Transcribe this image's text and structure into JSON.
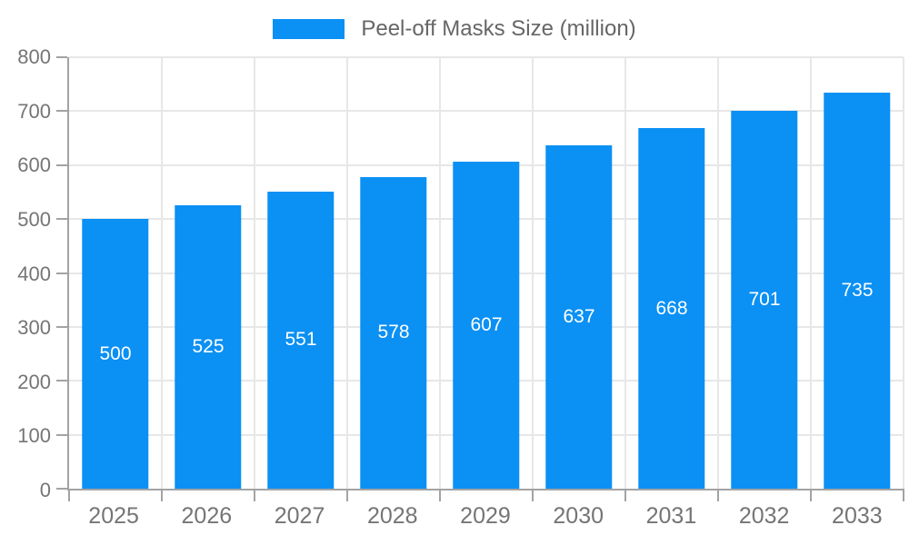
{
  "legend": {
    "label": "Peel-off Masks Size (million)"
  },
  "colors": {
    "bar": "#0b90f4",
    "grid": "#e7e7e7",
    "axis": "#a3a3a3",
    "tick_label": "#757575",
    "legend_label": "#666666",
    "value_label": "#ffffff",
    "background": "#ffffff"
  },
  "chart_data": {
    "type": "bar",
    "title": "",
    "xlabel": "",
    "ylabel": "",
    "categories": [
      "2025",
      "2026",
      "2027",
      "2028",
      "2029",
      "2030",
      "2031",
      "2032",
      "2033"
    ],
    "series": [
      {
        "name": "Peel-off Masks Size (million)",
        "values": [
          500,
          525,
          551,
          578,
          607,
          637,
          668,
          701,
          735
        ]
      }
    ],
    "ylim": [
      0,
      800
    ],
    "yticks": [
      0,
      100,
      200,
      300,
      400,
      500,
      600,
      700,
      800
    ],
    "grid": true,
    "legend_position": "top-center",
    "value_label_position": "inside-center"
  }
}
